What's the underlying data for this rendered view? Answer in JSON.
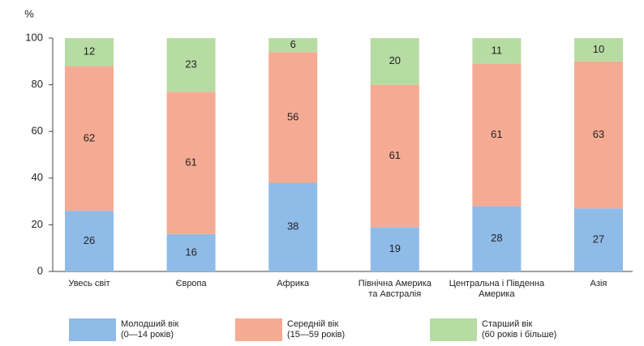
{
  "chart_data": {
    "type": "stacked_bar",
    "y_label": "%",
    "categories": [
      "Увесь світ",
      "Європа",
      "Африка",
      "Північна Америка\nта Австралія",
      "Центральна і Південна\nАмерика",
      "Азія"
    ],
    "series": [
      {
        "name": "Молодший вік\n(0—14 років)",
        "color": "#8fbbe8",
        "values": [
          26,
          16,
          38,
          19,
          28,
          27
        ]
      },
      {
        "name": "Середній вік\n(15—59 років)",
        "color": "#f5ab93",
        "values": [
          62,
          61,
          56,
          61,
          61,
          63
        ]
      },
      {
        "name": "Старший вік\n(60 років і більше)",
        "color": "#b7dca3",
        "values": [
          12,
          23,
          6,
          20,
          11,
          10
        ]
      }
    ],
    "ylim": [
      0,
      100
    ],
    "yticks": [
      0,
      20,
      40,
      60,
      80,
      100
    ]
  }
}
